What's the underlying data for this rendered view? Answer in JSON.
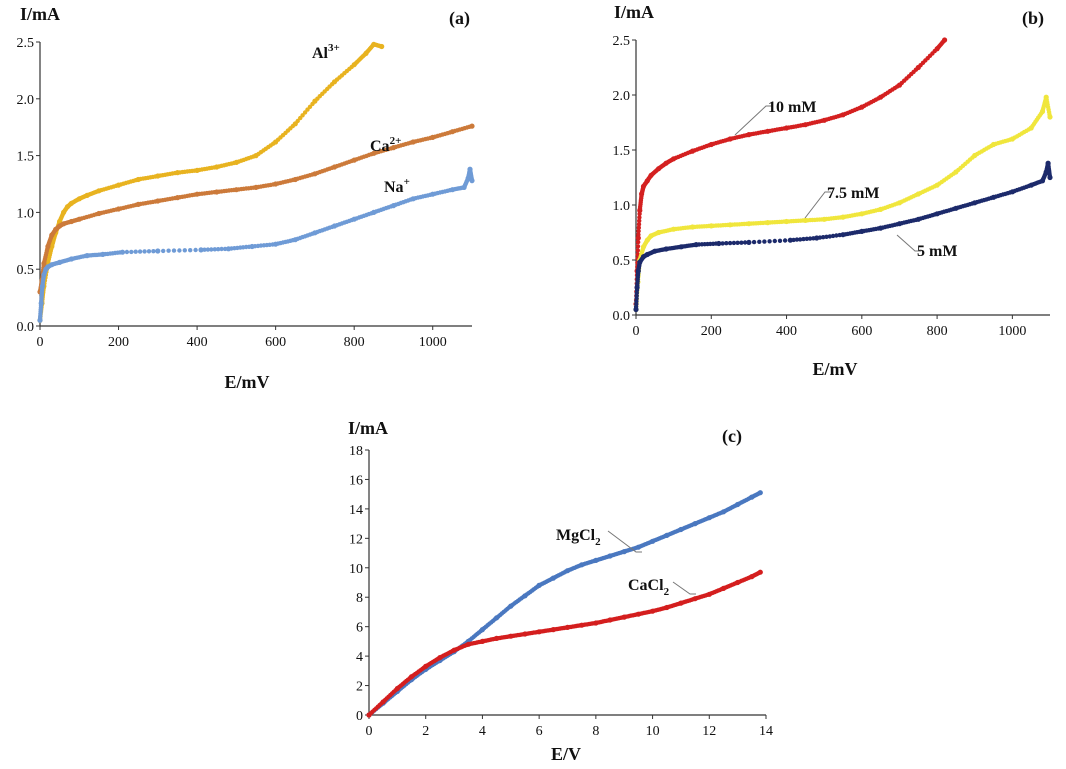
{
  "chart_data": [
    {
      "type": "scatter",
      "panel_label": "(a)",
      "xlabel": "E/mV",
      "ylabel": "I/mA",
      "xlim": [
        0,
        1100
      ],
      "ylim": [
        0,
        2.5
      ],
      "xticks": [
        0,
        200,
        400,
        600,
        800,
        1000
      ],
      "xtick_labels": [
        "0",
        "200",
        "400",
        "600",
        "800",
        "1000"
      ],
      "yticks": [
        0,
        0.5,
        1,
        1.5,
        2,
        2.5
      ],
      "ytick_labels": [
        "0.0",
        "0.5",
        "1.0",
        "1.5",
        "2.0",
        "2.5"
      ],
      "grid": false,
      "series": [
        {
          "name": "Al3+",
          "label_base": "Al",
          "label_sup": "3+",
          "color": "#e8b320",
          "x": [
            0,
            5,
            10,
            20,
            30,
            40,
            50,
            60,
            70,
            80,
            100,
            120,
            150,
            200,
            250,
            300,
            350,
            400,
            450,
            500,
            550,
            600,
            650,
            700,
            750,
            800,
            830,
            850,
            870
          ],
          "y": [
            0.05,
            0.2,
            0.35,
            0.55,
            0.7,
            0.82,
            0.92,
            1.0,
            1.05,
            1.08,
            1.12,
            1.15,
            1.19,
            1.24,
            1.29,
            1.32,
            1.35,
            1.37,
            1.4,
            1.44,
            1.5,
            1.62,
            1.78,
            1.98,
            2.15,
            2.3,
            2.4,
            2.48,
            2.46
          ]
        },
        {
          "name": "Ca2+",
          "label_base": "Ca",
          "label_sup": "2+",
          "color": "#cc7a3a",
          "x": [
            0,
            5,
            10,
            20,
            30,
            40,
            50,
            60,
            80,
            100,
            150,
            200,
            250,
            300,
            350,
            400,
            450,
            500,
            550,
            600,
            650,
            700,
            750,
            800,
            850,
            900,
            950,
            1000,
            1050,
            1100
          ],
          "y": [
            0.3,
            0.4,
            0.55,
            0.7,
            0.8,
            0.85,
            0.88,
            0.9,
            0.92,
            0.94,
            0.99,
            1.03,
            1.07,
            1.1,
            1.13,
            1.16,
            1.18,
            1.2,
            1.22,
            1.25,
            1.29,
            1.34,
            1.4,
            1.46,
            1.52,
            1.57,
            1.62,
            1.66,
            1.71,
            1.76
          ]
        },
        {
          "name": "Na+",
          "label_base": "Na",
          "label_sup": "+",
          "color": "#6f9bd6",
          "x": [
            0,
            3,
            6,
            10,
            15,
            20,
            30,
            50,
            80,
            120,
            160,
            210,
            300,
            410,
            480,
            540,
            600,
            650,
            700,
            750,
            800,
            850,
            900,
            950,
            1000,
            1050,
            1080,
            1090,
            1095,
            1100
          ],
          "y": [
            0.05,
            0.2,
            0.35,
            0.45,
            0.5,
            0.52,
            0.54,
            0.56,
            0.59,
            0.62,
            0.63,
            0.65,
            0.66,
            0.67,
            0.68,
            0.7,
            0.72,
            0.76,
            0.82,
            0.88,
            0.94,
            1.0,
            1.06,
            1.12,
            1.16,
            1.2,
            1.22,
            1.3,
            1.38,
            1.28
          ]
        }
      ]
    },
    {
      "type": "scatter",
      "panel_label": "(b)",
      "xlabel": "E/mV",
      "ylabel": "I/mA",
      "xlim": [
        0,
        1100
      ],
      "ylim": [
        0,
        2.5
      ],
      "xticks": [
        0,
        200,
        400,
        600,
        800,
        1000
      ],
      "xtick_labels": [
        "0",
        "200",
        "400",
        "600",
        "800",
        "1000"
      ],
      "yticks": [
        0,
        0.5,
        1,
        1.5,
        2,
        2.5
      ],
      "ytick_labels": [
        "0.0",
        "0.5",
        "1.0",
        "1.5",
        "2.0",
        "2.5"
      ],
      "grid": false,
      "series": [
        {
          "name": "10 mM",
          "color": "#d42020",
          "x": [
            0,
            3,
            6,
            10,
            15,
            20,
            30,
            40,
            60,
            80,
            100,
            150,
            200,
            250,
            300,
            350,
            400,
            450,
            500,
            550,
            600,
            650,
            700,
            750,
            800,
            820
          ],
          "y": [
            0.1,
            0.4,
            0.7,
            0.95,
            1.1,
            1.17,
            1.22,
            1.27,
            1.33,
            1.38,
            1.42,
            1.49,
            1.55,
            1.6,
            1.64,
            1.67,
            1.7,
            1.73,
            1.77,
            1.82,
            1.89,
            1.98,
            2.09,
            2.25,
            2.42,
            2.5
          ]
        },
        {
          "name": "7.5 mM",
          "color": "#f0e63c",
          "x": [
            0,
            5,
            10,
            20,
            30,
            40,
            60,
            100,
            150,
            200,
            250,
            300,
            350,
            400,
            450,
            500,
            550,
            600,
            650,
            700,
            750,
            800,
            850,
            900,
            950,
            1000,
            1050,
            1080,
            1090,
            1100
          ],
          "y": [
            0.05,
            0.3,
            0.5,
            0.62,
            0.68,
            0.72,
            0.75,
            0.78,
            0.8,
            0.81,
            0.82,
            0.83,
            0.84,
            0.85,
            0.86,
            0.87,
            0.89,
            0.92,
            0.96,
            1.02,
            1.1,
            1.18,
            1.3,
            1.45,
            1.55,
            1.6,
            1.7,
            1.85,
            1.98,
            1.8
          ]
        },
        {
          "name": "5 mM",
          "color": "#1c2a6b",
          "x": [
            0,
            3,
            6,
            10,
            20,
            30,
            50,
            80,
            120,
            160,
            220,
            300,
            410,
            480,
            550,
            600,
            650,
            700,
            750,
            800,
            850,
            900,
            950,
            1000,
            1050,
            1080,
            1090,
            1095,
            1100
          ],
          "y": [
            0.05,
            0.25,
            0.4,
            0.48,
            0.53,
            0.55,
            0.58,
            0.6,
            0.62,
            0.64,
            0.65,
            0.66,
            0.68,
            0.7,
            0.73,
            0.76,
            0.79,
            0.83,
            0.87,
            0.92,
            0.97,
            1.02,
            1.07,
            1.12,
            1.18,
            1.22,
            1.3,
            1.38,
            1.25
          ]
        }
      ]
    },
    {
      "type": "scatter",
      "panel_label": "(c)",
      "xlabel": "E/V",
      "ylabel": "I/mA",
      "xlim": [
        0,
        14
      ],
      "ylim": [
        0,
        18
      ],
      "xticks": [
        0,
        2,
        4,
        6,
        8,
        10,
        12,
        14
      ],
      "xtick_labels": [
        "0",
        "2",
        "4",
        "6",
        "8",
        "10",
        "12",
        "14"
      ],
      "yticks": [
        0,
        2,
        4,
        6,
        8,
        10,
        12,
        14,
        16,
        18
      ],
      "ytick_labels": [
        "0",
        "2",
        "4",
        "6",
        "8",
        "10",
        "12",
        "14",
        "16",
        "18"
      ],
      "grid": false,
      "series": [
        {
          "name": "MgCl2",
          "label_base": "MgCl",
          "label_sub": "2",
          "color": "#4a78c0",
          "x": [
            0,
            0.5,
            1,
            1.5,
            2,
            2.5,
            3,
            3.5,
            4,
            4.5,
            5,
            5.5,
            6,
            6.5,
            7,
            7.5,
            8,
            8.5,
            9,
            9.5,
            10,
            10.5,
            11,
            11.5,
            12,
            12.5,
            13,
            13.5,
            13.8
          ],
          "y": [
            0,
            0.8,
            1.6,
            2.4,
            3.1,
            3.7,
            4.3,
            5.0,
            5.8,
            6.6,
            7.4,
            8.1,
            8.8,
            9.3,
            9.8,
            10.2,
            10.5,
            10.8,
            11.1,
            11.4,
            11.8,
            12.2,
            12.6,
            13.0,
            13.4,
            13.8,
            14.3,
            14.8,
            15.1
          ]
        },
        {
          "name": "CaCl2",
          "label_base": "CaCl",
          "label_sub": "2",
          "color": "#d41e1e",
          "x": [
            0,
            0.5,
            1,
            1.5,
            2,
            2.5,
            3,
            3.5,
            4,
            4.5,
            5,
            5.5,
            6,
            6.5,
            7,
            7.5,
            8,
            8.5,
            9,
            9.5,
            10,
            10.5,
            11,
            11.5,
            12,
            12.5,
            13,
            13.5,
            13.8
          ],
          "y": [
            0,
            0.9,
            1.8,
            2.6,
            3.3,
            3.9,
            4.4,
            4.8,
            5.0,
            5.2,
            5.35,
            5.5,
            5.65,
            5.8,
            5.95,
            6.1,
            6.25,
            6.45,
            6.65,
            6.85,
            7.05,
            7.3,
            7.6,
            7.9,
            8.2,
            8.6,
            9.0,
            9.4,
            9.7
          ]
        }
      ]
    }
  ]
}
